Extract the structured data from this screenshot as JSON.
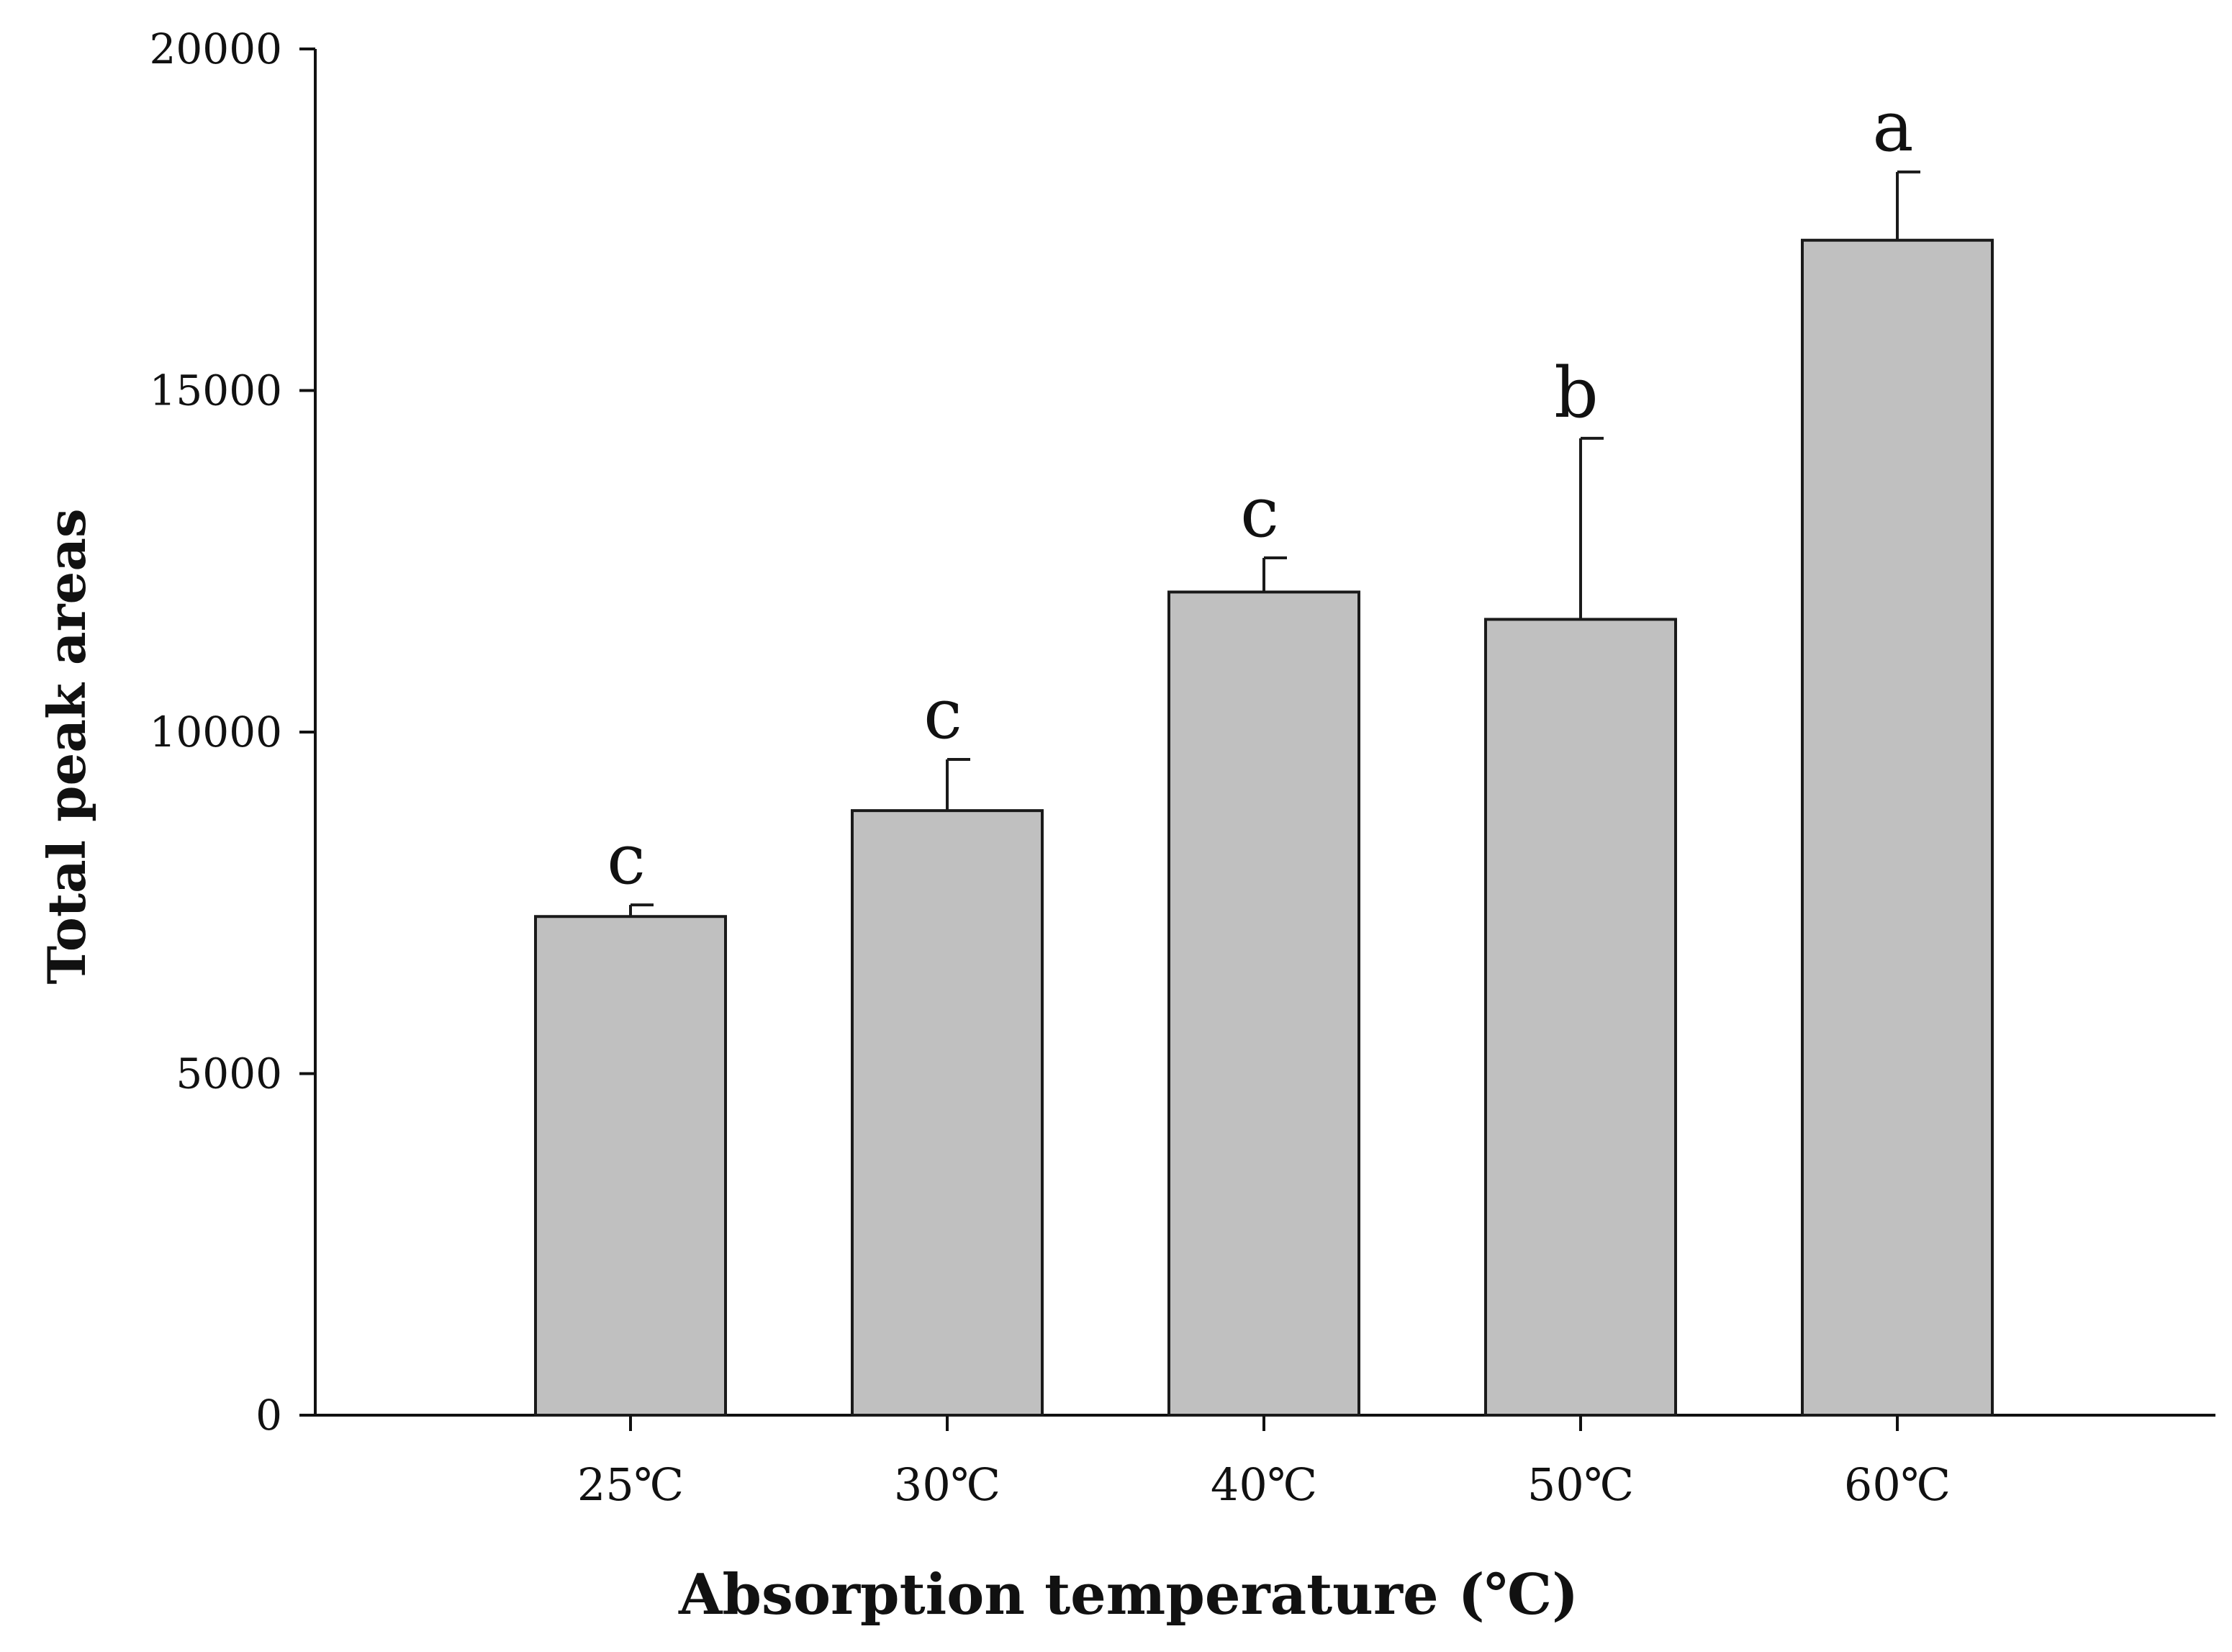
{
  "chart_data": {
    "type": "bar",
    "title": "",
    "categories": [
      "25℃",
      "30℃",
      "40℃",
      "50℃",
      "60℃"
    ],
    "values": [
      7300,
      8850,
      12050,
      11650,
      17200
    ],
    "errors": [
      170,
      750,
      500,
      2650,
      1000
    ],
    "significance_letters": [
      "c",
      "c",
      "c",
      "b",
      "a"
    ],
    "xlabel": "Absorption temperature (℃)",
    "ylabel": "Total peak areas",
    "ylim": [
      0,
      20000
    ],
    "yticks": [
      0,
      5000,
      10000,
      15000,
      20000
    ],
    "bar_color": "#c0c0c0",
    "bar_edge_color": "#1a1a1a",
    "axis_color": "#111111",
    "grid": false
  }
}
